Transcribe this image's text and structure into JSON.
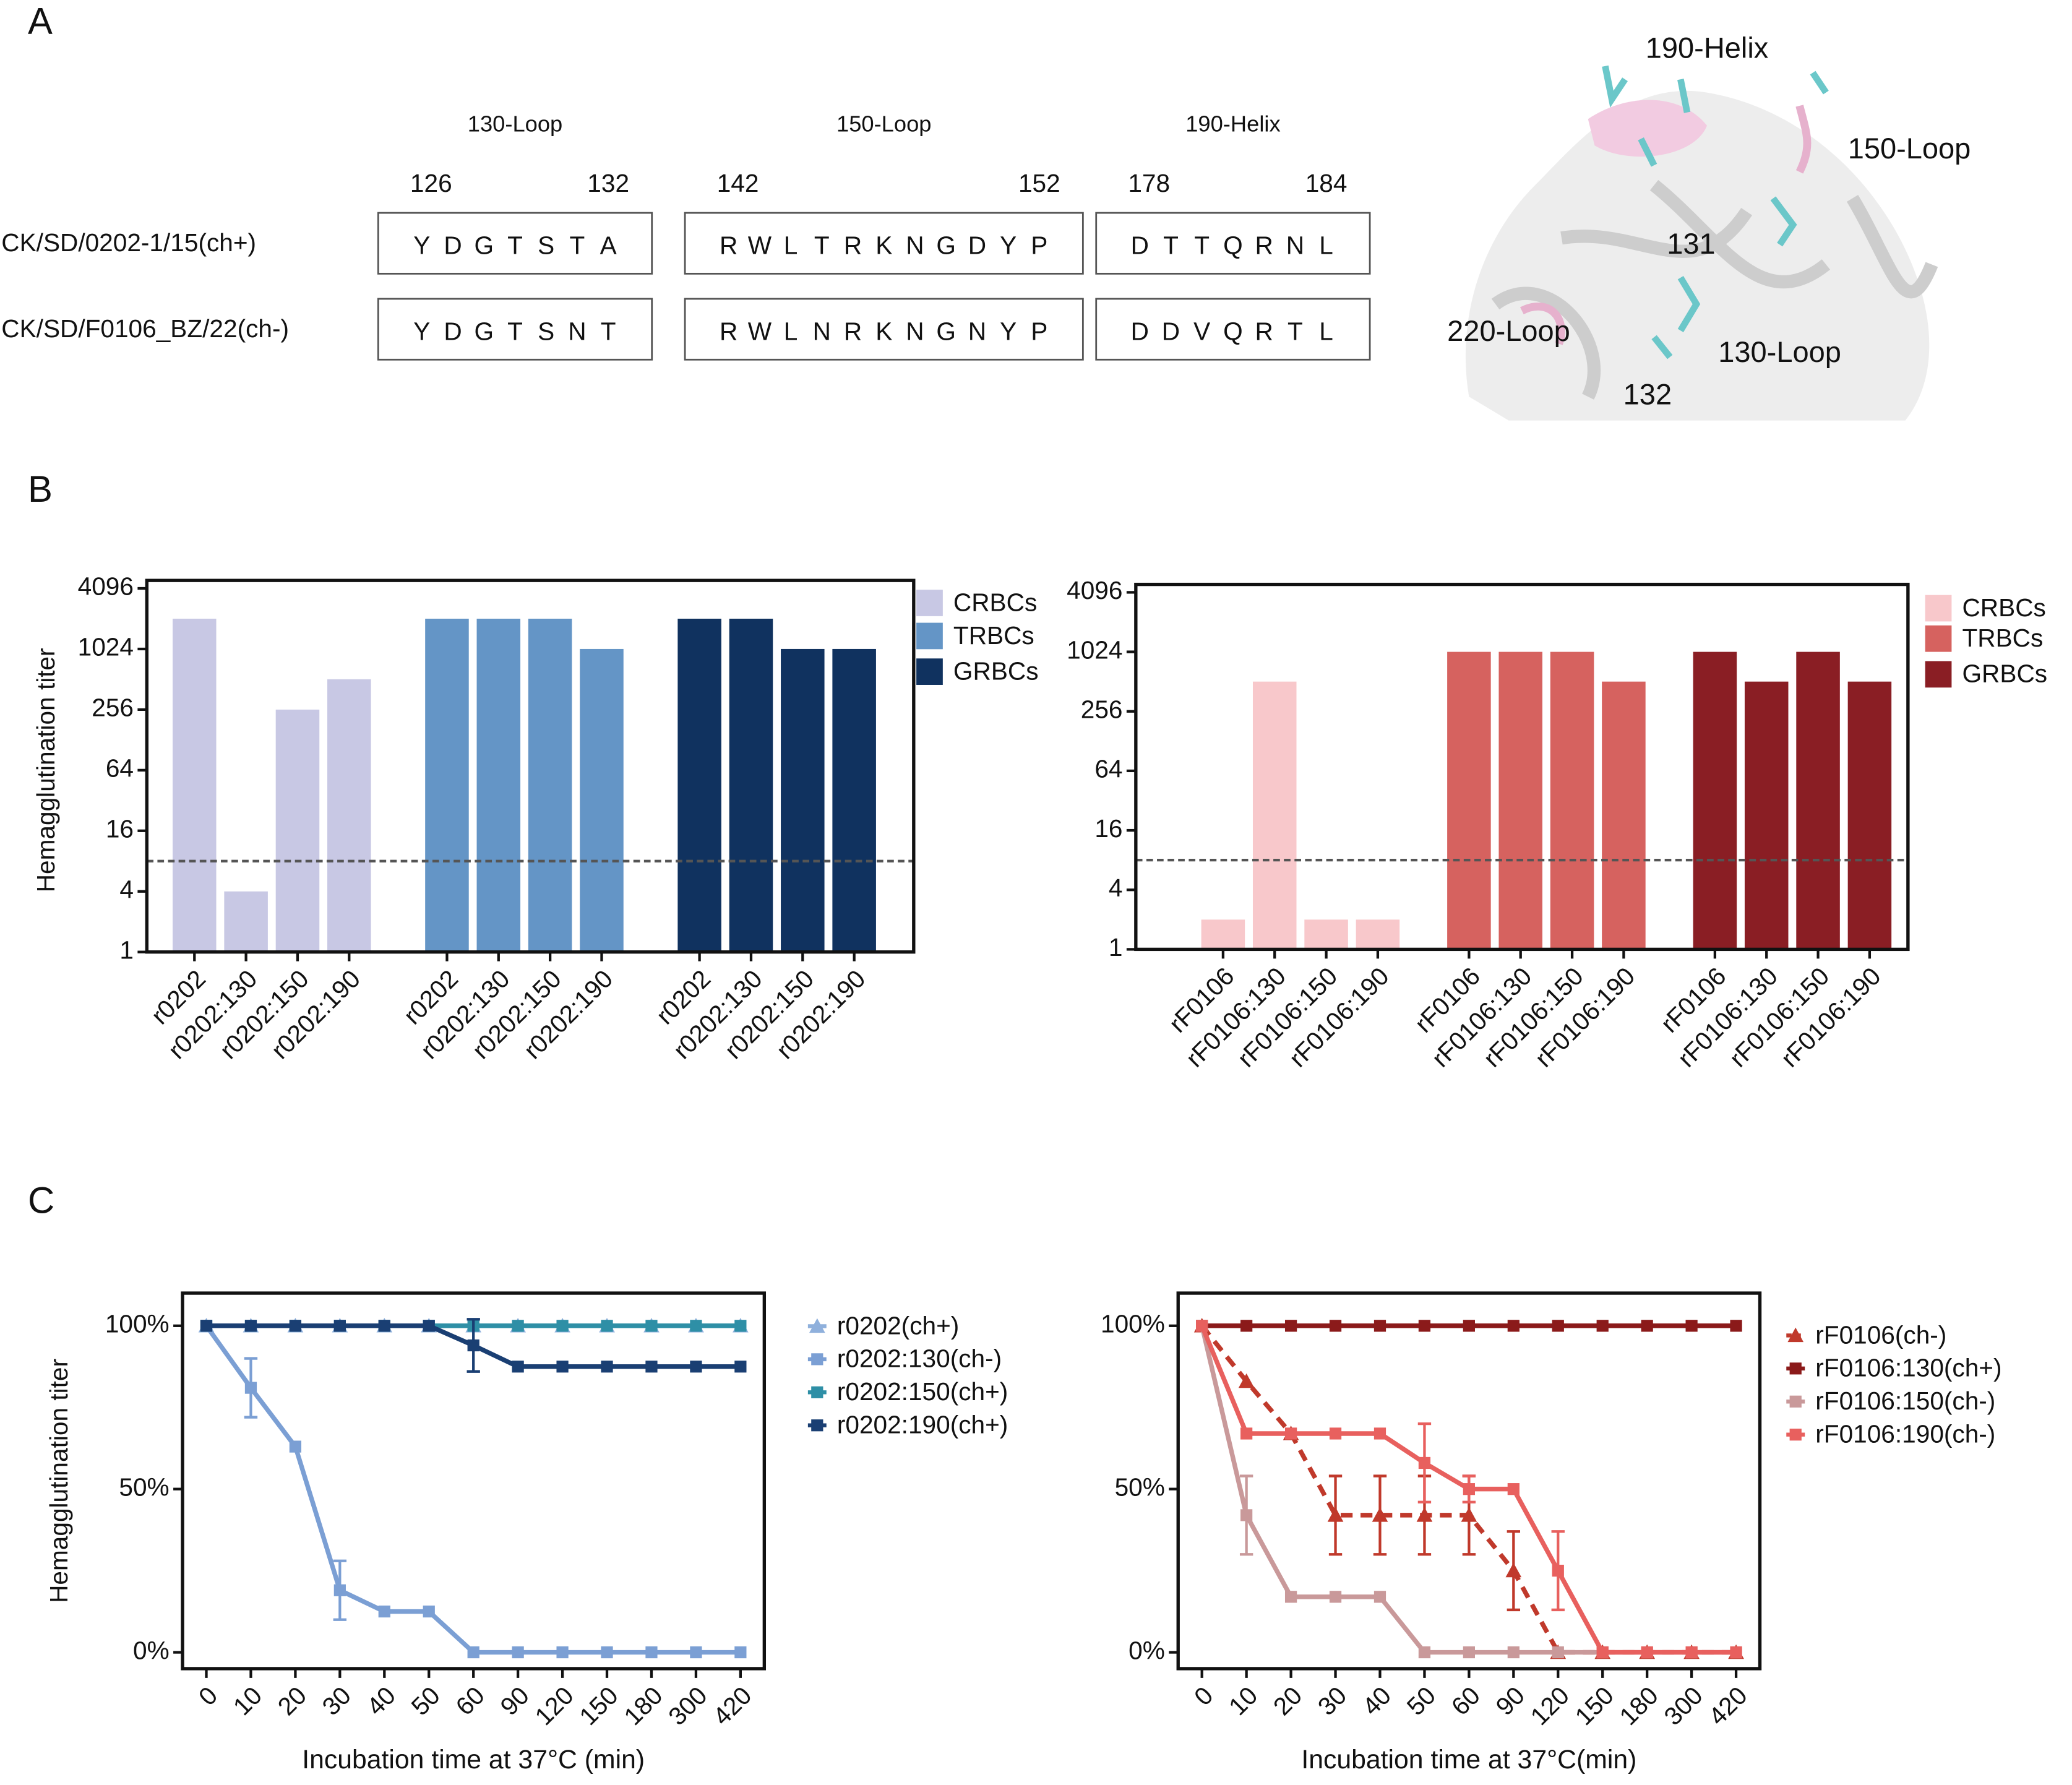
{
  "panel_labels": [
    "A",
    "B",
    "C"
  ],
  "sequence_alignment": {
    "strains": [
      "CK/SD/0202-1/15(ch+)",
      "CK/SD/F0106_BZ/22(ch-)"
    ],
    "highlight_colors": [
      "#2b5c8a",
      "#a52a2a"
    ],
    "regions": [
      {
        "name": "130-Loop",
        "start": 126,
        "end": 132,
        "sequences": [
          [
            "Y",
            "D",
            "G",
            "T",
            "S",
            "T",
            "A"
          ],
          [
            "Y",
            "D",
            "G",
            "T",
            "S",
            "N",
            "T"
          ]
        ]
      },
      {
        "name": "150-Loop",
        "start": 142,
        "end": 152,
        "sequences": [
          [
            "R",
            "W",
            "L",
            "T",
            "R",
            "K",
            "N",
            "G",
            "D",
            "Y",
            "P"
          ],
          [
            "R",
            "W",
            "L",
            "N",
            "R",
            "K",
            "N",
            "G",
            "N",
            "Y",
            "P"
          ]
        ]
      },
      {
        "name": "190-Helix",
        "start": 178,
        "end": 184,
        "sequences": [
          [
            "D",
            "T",
            "T",
            "Q",
            "R",
            "N",
            "L"
          ],
          [
            "D",
            "D",
            "V",
            "Q",
            "R",
            "T",
            "L"
          ]
        ]
      }
    ]
  },
  "structure": {
    "labels": [
      "190-Helix",
      "150-Loop",
      "131",
      "220-Loop",
      "130-Loop",
      "132"
    ]
  },
  "chart_data": [
    {
      "type": "bar",
      "log_base": 2,
      "ylabel": "Hemagglutination titer",
      "categories": [
        "r0202",
        "r0202:130",
        "r0202:150",
        "r0202:190"
      ],
      "ylim": [
        1,
        4096
      ],
      "yticks": [
        1,
        4,
        16,
        64,
        256,
        1024,
        4096
      ],
      "threshold": 8,
      "series": [
        {
          "name": "CRBCs",
          "color": "#c8c8e4",
          "values": [
            2048,
            4,
            256,
            512
          ]
        },
        {
          "name": "TRBCs",
          "color": "#6495c6",
          "values": [
            2048,
            2048,
            2048,
            1024
          ]
        },
        {
          "name": "GRBCs",
          "color": "#10325f",
          "values": [
            2048,
            2048,
            1024,
            1024
          ]
        }
      ]
    },
    {
      "type": "bar",
      "log_base": 2,
      "categories": [
        "rF0106",
        "rF0106:130",
        "rF0106:150",
        "rF0106:190"
      ],
      "ylim": [
        1,
        4096
      ],
      "yticks": [
        1,
        4,
        16,
        64,
        256,
        1024,
        4096
      ],
      "threshold": 8,
      "series": [
        {
          "name": "CRBCs",
          "color": "#f8c8cb",
          "values": [
            2,
            512,
            2,
            2
          ]
        },
        {
          "name": "TRBCs",
          "color": "#d6625f",
          "values": [
            1024,
            1024,
            1024,
            512
          ]
        },
        {
          "name": "GRBCs",
          "color": "#8a1e24",
          "values": [
            1024,
            512,
            1024,
            512
          ]
        }
      ]
    },
    {
      "type": "line",
      "ylabel": "Hemagglutination titer",
      "xlabel": "Incubation time at 37°C (min)",
      "categories": [
        "0",
        "10",
        "20",
        "30",
        "40",
        "50",
        "60",
        "90",
        "120",
        "150",
        "180",
        "300",
        "420"
      ],
      "ylim": [
        -5,
        110
      ],
      "yticks": [
        {
          "value": 0,
          "label": "0%"
        },
        {
          "value": 50,
          "label": "50%"
        },
        {
          "value": 100,
          "label": "100%"
        }
      ],
      "series": [
        {
          "name": "r0202(ch+)",
          "color": "#8fb0dc",
          "marker": "triangle",
          "values": [
            100,
            100,
            100,
            100,
            100,
            100,
            100,
            100,
            100,
            100,
            100,
            100,
            100
          ]
        },
        {
          "name": "r0202:130(ch-)",
          "color": "#7b9fd4",
          "marker": "square",
          "values": [
            100,
            81,
            63,
            19,
            12.5,
            12.5,
            0,
            0,
            0,
            0,
            0,
            0,
            0
          ],
          "errors": [
            null,
            9,
            null,
            9,
            null,
            null,
            null,
            null,
            null,
            null,
            null,
            null,
            null
          ]
        },
        {
          "name": "r0202:150(ch+)",
          "color": "#2e8fa6",
          "marker": "square",
          "values": [
            100,
            100,
            100,
            100,
            100,
            100,
            100,
            100,
            100,
            100,
            100,
            100,
            100
          ]
        },
        {
          "name": "r0202:190(ch+)",
          "color": "#1a3f73",
          "marker": "square",
          "values": [
            100,
            100,
            100,
            100,
            100,
            100,
            94,
            87.5,
            87.5,
            87.5,
            87.5,
            87.5,
            87.5
          ],
          "errors": [
            null,
            null,
            null,
            null,
            null,
            null,
            8,
            null,
            null,
            null,
            null,
            null,
            null
          ]
        }
      ]
    },
    {
      "type": "line",
      "xlabel": "Incubation time at 37°C(min)",
      "categories": [
        "0",
        "10",
        "20",
        "30",
        "40",
        "50",
        "60",
        "90",
        "120",
        "150",
        "180",
        "300",
        "420"
      ],
      "ylim": [
        -5,
        110
      ],
      "yticks": [
        {
          "value": 0,
          "label": "0%"
        },
        {
          "value": 50,
          "label": "50%"
        },
        {
          "value": 100,
          "label": "100%"
        }
      ],
      "series": [
        {
          "name": "rF0106(ch-)",
          "color": "#c0392b",
          "marker": "triangle",
          "dashed": true,
          "values": [
            100,
            83,
            67,
            42,
            42,
            42,
            42,
            25,
            0,
            0,
            0,
            0,
            0
          ],
          "errors": [
            null,
            null,
            null,
            12,
            12,
            12,
            12,
            12,
            null,
            null,
            null,
            null,
            null
          ]
        },
        {
          "name": "rF0106:130(ch+)",
          "color": "#8b1a1a",
          "marker": "square",
          "values": [
            100,
            100,
            100,
            100,
            100,
            100,
            100,
            100,
            100,
            100,
            100,
            100,
            100
          ]
        },
        {
          "name": "rF0106:150(ch-)",
          "color": "#c9999a",
          "marker": "square",
          "values": [
            100,
            42,
            17,
            17,
            17,
            0,
            0,
            0,
            0,
            0,
            0,
            0,
            0
          ],
          "errors": [
            null,
            12,
            null,
            null,
            null,
            null,
            null,
            null,
            null,
            null,
            null,
            null,
            null
          ]
        },
        {
          "name": "rF0106:190(ch-)",
          "color": "#e8605e",
          "marker": "square",
          "values": [
            100,
            67,
            67,
            67,
            67,
            58,
            50,
            50,
            25,
            0,
            0,
            0,
            0
          ],
          "errors": [
            null,
            null,
            null,
            null,
            null,
            12,
            4,
            null,
            12,
            null,
            null,
            null,
            null
          ]
        }
      ]
    }
  ]
}
